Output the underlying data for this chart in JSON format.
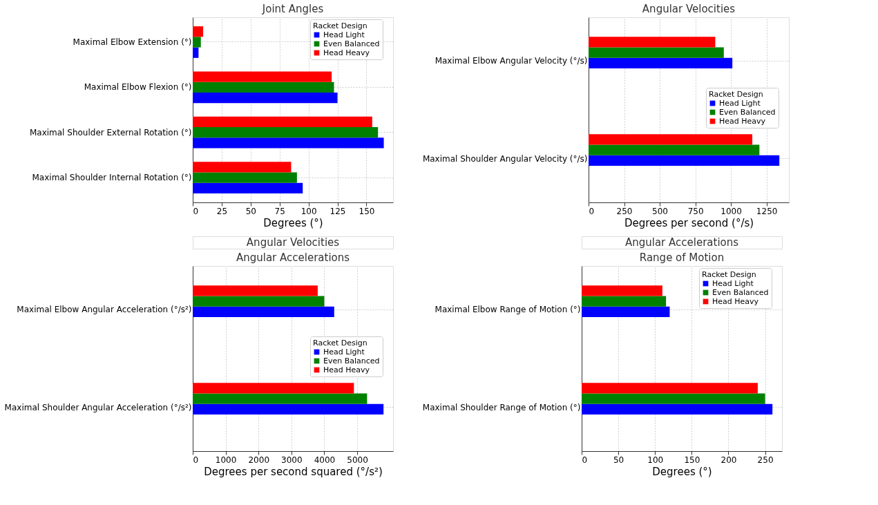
{
  "chart_data": [
    {
      "type": "bar",
      "orientation": "horizontal",
      "title": "Joint Angles",
      "xlabel": "Degrees (°)",
      "legend_title": "Racket Design",
      "legend": "top right",
      "grid": true,
      "categories": [
        "Maximal Elbow Extension (°)",
        "Maximal Elbow Flexion (°)",
        "Maximal Shoulder External Rotation (°)",
        "Maximal Shoulder Internal Rotation (°)"
      ],
      "xlim": [
        0,
        173
      ],
      "xticks": [
        0,
        25,
        50,
        75,
        100,
        125,
        150
      ],
      "series": [
        {
          "name": "Head Light",
          "color": "#0000ff",
          "values": [
            5,
            125,
            165,
            95
          ]
        },
        {
          "name": "Even Balanced",
          "color": "#008000",
          "values": [
            7,
            122,
            160,
            90
          ]
        },
        {
          "name": "Head Heavy",
          "color": "#ff0000",
          "values": [
            9,
            120,
            155,
            85
          ]
        }
      ]
    },
    {
      "type": "bar",
      "orientation": "horizontal",
      "title": "Angular Velocities",
      "xlabel": "Degrees per second (°/s)",
      "legend_title": "Racket Design",
      "legend": "right",
      "grid": true,
      "categories": [
        "Maximal Elbow Angular Velocity (°/s)",
        "Maximal Shoulder Angular Velocity (°/s)"
      ],
      "xlim": [
        0,
        1407
      ],
      "xticks": [
        0,
        250,
        500,
        750,
        1000,
        1250
      ],
      "series": [
        {
          "name": "Head Light",
          "color": "#0000ff",
          "values": [
            1010,
            1340
          ]
        },
        {
          "name": "Even Balanced",
          "color": "#008000",
          "values": [
            950,
            1200
          ]
        },
        {
          "name": "Head Heavy",
          "color": "#ff0000",
          "values": [
            890,
            1150
          ]
        }
      ]
    },
    {
      "type": "bar",
      "orientation": "horizontal",
      "title": "Angular Accelerations",
      "annotations": [
        "Angular Velocities"
      ],
      "xlabel": "Degrees per second squared (°/s²)",
      "legend_title": "Racket Design",
      "legend": "right",
      "grid": true,
      "categories": [
        "Maximal Elbow Angular Acceleration (°/s²)",
        "Maximal Shoulder Angular Acceleration (°/s²)"
      ],
      "xlim": [
        0,
        6090
      ],
      "xticks": [
        0,
        1000,
        2000,
        3000,
        4000,
        5000
      ],
      "series": [
        {
          "name": "Head Light",
          "color": "#0000ff",
          "values": [
            4300,
            5800
          ]
        },
        {
          "name": "Even Balanced",
          "color": "#008000",
          "values": [
            4000,
            5300
          ]
        },
        {
          "name": "Head Heavy",
          "color": "#ff0000",
          "values": [
            3800,
            4900
          ]
        }
      ]
    },
    {
      "type": "bar",
      "orientation": "horizontal",
      "title": "Range of Motion",
      "annotations": [
        "Angular Accelerations"
      ],
      "xlabel": "Degrees (°)",
      "legend_title": "Racket Design",
      "legend": "top right",
      "grid": true,
      "categories": [
        "Maximal Elbow Range of Motion (°)",
        "Maximal Shoulder Range of Motion (°)"
      ],
      "xlim": [
        0,
        273
      ],
      "xticks": [
        0,
        50,
        100,
        150,
        200,
        250
      ],
      "series": [
        {
          "name": "Head Light",
          "color": "#0000ff",
          "values": [
            120,
            260
          ]
        },
        {
          "name": "Even Balanced",
          "color": "#008000",
          "values": [
            115,
            250
          ]
        },
        {
          "name": "Head Heavy",
          "color": "#ff0000",
          "values": [
            110,
            240
          ]
        }
      ]
    }
  ]
}
